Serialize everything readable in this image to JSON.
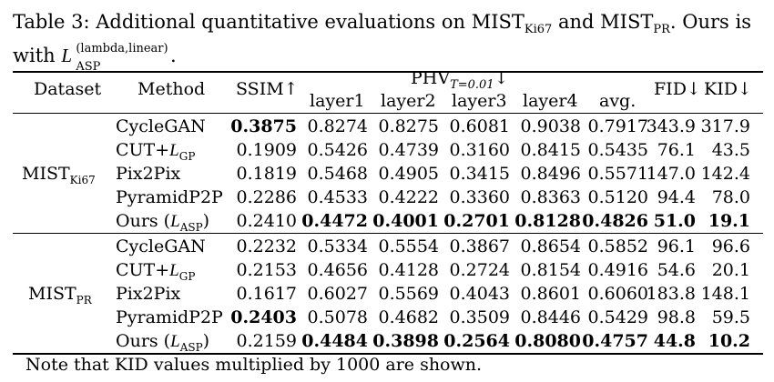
{
  "caption": {
    "line1_pre": "Table 3: Additional quantitative evaluations on MIST",
    "ki67_sub": "Ki67",
    "and": " and MIST",
    "pr_sub": "PR",
    "line1_post": ". Ours is",
    "line2_pre": "with ",
    "L": "L",
    "asp_sup": "(lambda,linear)",
    "asp_sub": "ASP",
    "line2_post": "."
  },
  "headers": {
    "dataset": "Dataset",
    "method": "Method",
    "ssim": "SSIM↑",
    "phv_pre": "PHV",
    "phv_sub": "T=0.01",
    "phv_post": "↓",
    "layer1": "layer1",
    "layer2": "layer2",
    "layer3": "layer3",
    "layer4": "layer4",
    "avg": "avg.",
    "fid": "FID↓",
    "kid": "KID↓"
  },
  "groups": [
    {
      "dataset_pre": "MIST",
      "dataset_sub": "Ki67",
      "rows": [
        {
          "method": "CycleGAN",
          "ssim": "0.3875",
          "l1": "0.8274",
          "l2": "0.8275",
          "l3": "0.6081",
          "l4": "0.9038",
          "avg": "0.7917",
          "fid": "343.9",
          "kid": "317.9"
        },
        {
          "method": "CUT+",
          "method_L": "L",
          "method_sub": "GP",
          "ssim": "0.1909",
          "l1": "0.5426",
          "l2": "0.4739",
          "l3": "0.3160",
          "l4": "0.8415",
          "avg": "0.5435",
          "fid": "76.1",
          "kid": "43.5"
        },
        {
          "method": "Pix2Pix",
          "ssim": "0.1819",
          "l1": "0.5468",
          "l2": "0.4905",
          "l3": "0.3415",
          "l4": "0.8496",
          "avg": "0.5571",
          "fid": "147.0",
          "kid": "142.4"
        },
        {
          "method": "PyramidP2P",
          "ssim": "0.2286",
          "l1": "0.4533",
          "l2": "0.4222",
          "l3": "0.3360",
          "l4": "0.8363",
          "avg": "0.5120",
          "fid": "94.4",
          "kid": "78.0"
        },
        {
          "method": "Ours (",
          "method_L": "L",
          "method_sub": "ASP",
          "method_close": ")",
          "ssim": "0.2410",
          "l1": "0.4472",
          "l2": "0.4001",
          "l3": "0.2701",
          "l4": "0.8128",
          "avg": "0.4826",
          "fid": "51.0",
          "kid": "19.1"
        }
      ]
    },
    {
      "dataset_pre": "MIST",
      "dataset_sub": "PR",
      "rows": [
        {
          "method": "CycleGAN",
          "ssim": "0.2232",
          "l1": "0.5334",
          "l2": "0.5554",
          "l3": "0.3867",
          "l4": "0.8654",
          "avg": "0.5852",
          "fid": "96.1",
          "kid": "96.6"
        },
        {
          "method": "CUT+",
          "method_L": "L",
          "method_sub": "GP",
          "ssim": "0.2153",
          "l1": "0.4656",
          "l2": "0.4128",
          "l3": "0.2724",
          "l4": "0.8154",
          "avg": "0.4916",
          "fid": "54.6",
          "kid": "20.1"
        },
        {
          "method": "Pix2Pix",
          "ssim": "0.1617",
          "l1": "0.6027",
          "l2": "0.5569",
          "l3": "0.4043",
          "l4": "0.8601",
          "avg": "0.6060",
          "fid": "183.8",
          "kid": "148.1"
        },
        {
          "method": "PyramidP2P",
          "ssim": "0.2403",
          "l1": "0.5078",
          "l2": "0.4682",
          "l3": "0.3509",
          "l4": "0.8446",
          "avg": "0.5429",
          "fid": "98.8",
          "kid": "59.5"
        },
        {
          "method": "Ours (",
          "method_L": "L",
          "method_sub": "ASP",
          "method_close": ")",
          "ssim": "0.2159",
          "l1": "0.4484",
          "l2": "0.3898",
          "l3": "0.2564",
          "l4": "0.8080",
          "avg": "0.4757",
          "fid": "44.8",
          "kid": "10.2"
        }
      ]
    }
  ],
  "note": "Note that KID values multiplied by 1000 are shown."
}
